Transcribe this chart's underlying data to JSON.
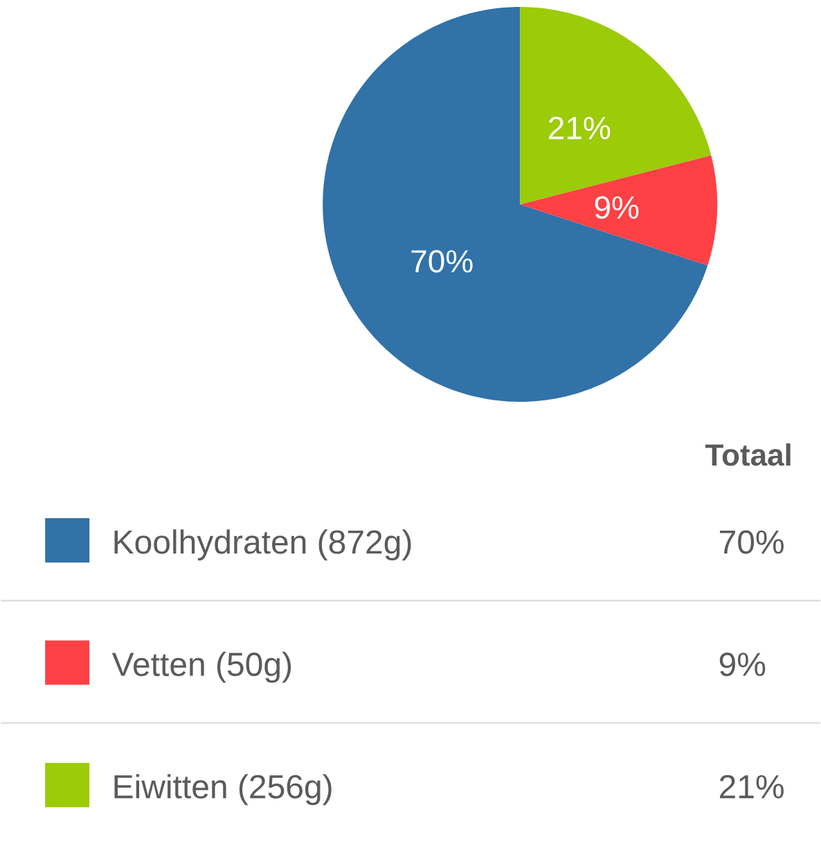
{
  "chart_data": {
    "type": "pie",
    "categories": [
      "Koolhydraten (872g)",
      "Vetten (50g)",
      "Eiwitten (256g)"
    ],
    "values": [
      70,
      9,
      21
    ],
    "colors": [
      "#3172a8",
      "#fd4145",
      "#9ccb08"
    ],
    "value_labels": [
      "70%",
      "9%",
      "21%"
    ],
    "legend_title": "Totaal",
    "legend": "bottom"
  }
}
